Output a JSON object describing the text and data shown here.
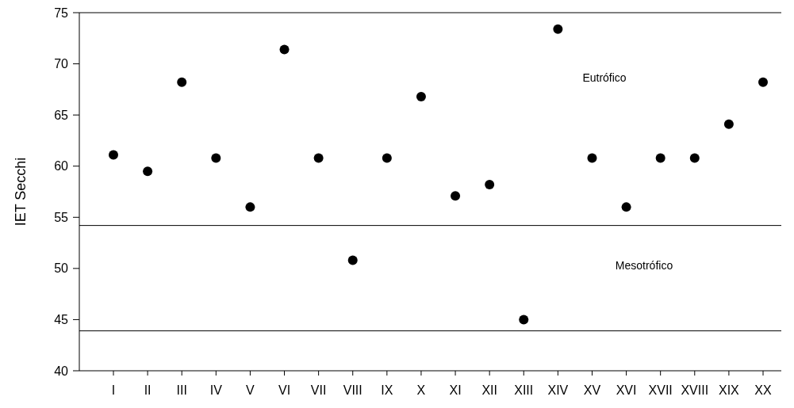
{
  "chart_data": {
    "type": "scatter",
    "ylabel": "IET Secchi",
    "categories": [
      "I",
      "II",
      "III",
      "IV",
      "V",
      "VI",
      "VII",
      "VIII",
      "IX",
      "X",
      "XI",
      "XII",
      "XIII",
      "XIV",
      "XV",
      "XVI",
      "XVII",
      "XVIII",
      "XIX",
      "XX"
    ],
    "values": [
      61.1,
      59.5,
      68.2,
      60.8,
      56.0,
      71.4,
      60.8,
      50.8,
      60.8,
      66.8,
      57.1,
      58.2,
      45.0,
      73.4,
      60.8,
      56.0,
      60.8,
      60.8,
      64.1,
      68.2
    ],
    "color": "#000000",
    "marker": "circle",
    "ylim": [
      40,
      75
    ],
    "yticks": [
      40,
      45,
      50,
      55,
      60,
      65,
      70,
      75
    ],
    "ref_lines": [
      {
        "axis": "y",
        "value": 54.2,
        "color": "#000000"
      },
      {
        "axis": "y",
        "value": 43.9,
        "color": "#000000"
      }
    ],
    "annotations": [
      "Eutrófico",
      "Mesotrófico"
    ]
  }
}
